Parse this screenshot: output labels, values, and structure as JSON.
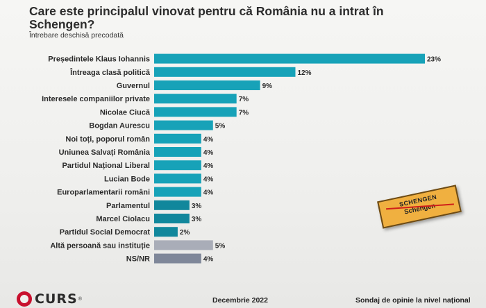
{
  "title": "Care este principalul vinovat pentru că România nu a intrat în Schengen?",
  "subtitle": "Întrebare deschisă precodată",
  "chart_data": {
    "type": "bar",
    "orientation": "horizontal",
    "categories": [
      "Președintele Klaus Iohannis",
      "Întreaga clasă politică",
      "Guvernul",
      "Interesele companiilor private",
      "Nicolae Ciucă",
      "Bogdan Aurescu",
      "Noi toți, poporul român",
      "Uniunea Salvați România",
      "Partidul Național Liberal",
      "Lucian Bode",
      "Europarlamentarii români",
      "Parlamentul",
      "Marcel Ciolacu",
      "Partidul Social Democrat",
      "Altă persoană sau instituție",
      "NS/NR"
    ],
    "values": [
      23,
      12,
      9,
      7,
      7,
      5,
      4,
      4,
      4,
      4,
      4,
      3,
      3,
      2,
      5,
      4
    ],
    "value_labels": [
      "23%",
      "12%",
      "9%",
      "7%",
      "7%",
      "5%",
      "4%",
      "4%",
      "4%",
      "4%",
      "4%",
      "3%",
      "3%",
      "2%",
      "5%",
      "4%"
    ],
    "colors": [
      "#17a2b8",
      "#17a2b8",
      "#17a2b8",
      "#17a2b8",
      "#17a2b8",
      "#17a2b8",
      "#17a2b8",
      "#17a2b8",
      "#17a2b8",
      "#17a2b8",
      "#17a2b8",
      "#11879c",
      "#11879c",
      "#11879c",
      "#a9adb8",
      "#7f8799"
    ],
    "xlim": [
      0,
      23
    ]
  },
  "stamp": {
    "top_text": "SCHENGEN",
    "bottom_text": "Schengen"
  },
  "footer": {
    "logo_text": "CURS",
    "logo_reg": "®",
    "date": "Decembrie 2022",
    "note": "Sondaj de opinie la nivel național"
  }
}
